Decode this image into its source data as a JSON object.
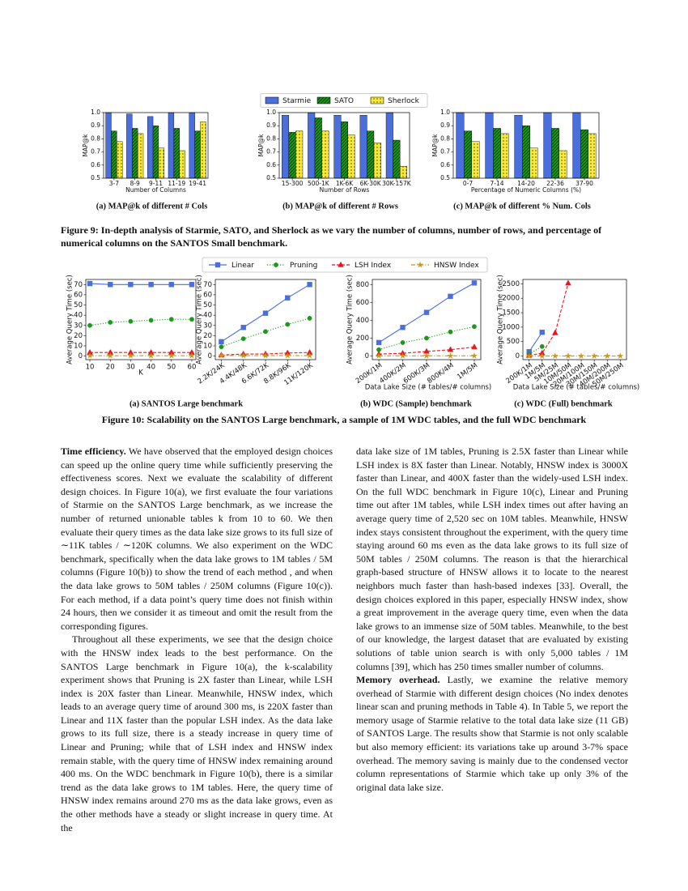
{
  "chart_data": [
    {
      "type": "bar",
      "caption": "Figure 9: In-depth analysis of Starmie, SATO, and Sherlock as we vary the number of columns, number of rows, and percentage of numerical columns on the SANTOS Small benchmark.",
      "legend": [
        {
          "name": "Starmie",
          "color": "#4a6fdc",
          "hatch": "none"
        },
        {
          "name": "SATO",
          "color": "#1f8f1f",
          "hatch": "diagonal"
        },
        {
          "name": "Sherlock",
          "color": "#f7e83a",
          "hatch": "dots"
        }
      ],
      "ylim": [
        0.5,
        1.0
      ],
      "yticks": [
        0.5,
        0.6,
        0.7,
        0.8,
        0.9,
        {
          "value": 1,
          "label": "1.0"
        }
      ],
      "panels": [
        {
          "ylabel": "MAP@k",
          "xlabel": "Number of Columns",
          "caption": "(a) MAP@k of different # Cols",
          "categories": [
            "3-7",
            "8-9",
            "9-11",
            "11-19",
            "19-41"
          ],
          "series": [
            {
              "values": [
                1.0,
                0.99,
                0.97,
                1.0,
                1.0
              ]
            },
            {
              "values": [
                0.86,
                0.88,
                0.9,
                0.88,
                0.86
              ]
            },
            {
              "values": [
                0.78,
                0.84,
                0.73,
                0.71,
                0.93
              ]
            }
          ]
        },
        {
          "ylabel": "MAP@k",
          "xlabel": "Number of Rows",
          "caption": "(b) MAP@k of different # Rows",
          "categories": [
            "15-300",
            "500-1K",
            "1K-6K",
            "6K-30K",
            "30K-157K"
          ],
          "series": [
            {
              "values": [
                0.98,
                1.0,
                0.98,
                0.98,
                1.0
              ]
            },
            {
              "values": [
                0.85,
                0.96,
                0.93,
                0.86,
                0.79
              ]
            },
            {
              "values": [
                0.86,
                0.86,
                0.83,
                0.77,
                0.59
              ]
            }
          ]
        },
        {
          "ylabel": "MAP@k",
          "xlabel": "Percentage of Numeric Columns (%)",
          "caption": "(c) MAP@k of different % Num. Cols",
          "categories": [
            "0-7",
            "7-14",
            "14-20",
            "22-36",
            "37-90"
          ],
          "series": [
            {
              "values": [
                1.0,
                1.0,
                0.98,
                1.0,
                1.0
              ]
            },
            {
              "values": [
                0.86,
                0.88,
                0.9,
                0.88,
                0.87
              ]
            },
            {
              "values": [
                0.78,
                0.84,
                0.73,
                0.71,
                0.84
              ]
            }
          ]
        }
      ]
    },
    {
      "type": "line",
      "caption": "Figure 10: Scalability on the SANTOS Large benchmark, a sample of 1M WDC tables, and the full WDC benchmark",
      "legend": [
        {
          "name": "Linear",
          "color": "#4a6fdc",
          "marker": "square",
          "dash": "solid"
        },
        {
          "name": "Pruning",
          "color": "#1a9a1a",
          "marker": "circle",
          "dash": "dotted"
        },
        {
          "name": "LSH Index",
          "color": "#e8141e",
          "marker": "triangle",
          "dash": "dashed"
        },
        {
          "name": "HNSW Index",
          "color": "#c8961e",
          "marker": "star",
          "dash": "dashdot"
        }
      ],
      "panels": [
        {
          "ylabel": "Average Query Time (sec)",
          "xlabel": "K",
          "caption": "(a) SANTOS Large benchmark",
          "x": [
            10,
            20,
            30,
            40,
            50,
            60
          ],
          "xlim": [
            8,
            62
          ],
          "xticks": [
            10,
            20,
            30,
            40,
            50,
            60
          ],
          "ylim": [
            -3.5,
            75
          ],
          "yticks": [
            0,
            10,
            20,
            30,
            40,
            50,
            60,
            70
          ],
          "series": [
            {
              "values": [
                71,
                70,
                70,
                70,
                70,
                70
              ]
            },
            {
              "values": [
                30,
                33,
                34,
                35,
                36,
                36
              ]
            },
            {
              "values": [
                3.5,
                3.5,
                3.5,
                3.5,
                3.5,
                3.5
              ]
            },
            {
              "values": [
                0.3,
                0.3,
                0.3,
                0.3,
                0.3,
                0.3
              ]
            }
          ]
        },
        {
          "ylabel": "Average Query Time (sec)",
          "categories": [
            "2.2K/24K",
            "4.4K/48K",
            "6.6K/72K",
            "8.8K/96K",
            "11K/120K"
          ],
          "ylim": [
            -3.5,
            75
          ],
          "yticks": [
            0,
            10,
            20,
            30,
            40,
            50,
            60,
            70
          ],
          "series": [
            {
              "values": [
                14,
                28,
                42,
                57,
                70
              ]
            },
            {
              "values": [
                9,
                17,
                24,
                31,
                37
              ]
            },
            {
              "values": [
                1,
                2,
                2,
                3,
                3.5
              ]
            },
            {
              "values": [
                0.4,
                0.4,
                0.4,
                0.4,
                0.4
              ]
            }
          ]
        },
        {
          "ylabel": "Average Query Time (sec)",
          "xlabel": "Data Lake Size (# tables/# columns)",
          "caption": "(b) WDC (Sample) benchmark",
          "categories": [
            "200K/1M",
            "400K/2M",
            "600K/3M",
            "800K/4M",
            "1M/5M"
          ],
          "ylim": [
            -42,
            860
          ],
          "yticks": [
            0,
            200,
            400,
            600,
            800
          ],
          "series": [
            {
              "values": [
                150,
                320,
                490,
                670,
                820
              ]
            },
            {
              "values": [
                70,
                150,
                200,
                270,
                330
              ]
            },
            {
              "values": [
                20,
                30,
                50,
                70,
                100
              ]
            },
            {
              "values": [
                0.27,
                0.27,
                0.27,
                0.27,
                0.27
              ]
            }
          ]
        },
        {
          "ylabel": "Average Query Time (sec)",
          "xlabel": "Data Lake Size (# tables/# columns)",
          "caption": "(c) WDC (Full) benchmark",
          "categories": [
            "200K/1M",
            "1M/5M",
            "5M/25M",
            "10M/50M",
            "20M/100M",
            "30M/150M",
            "40M/200M",
            "50M/250M"
          ],
          "ylim": [
            -125,
            2650
          ],
          "yticks": [
            0,
            500,
            1000,
            1500,
            2000,
            2500
          ],
          "series": [
            {
              "values": [
                150,
                820,
                null,
                null,
                null,
                null,
                null,
                null
              ]
            },
            {
              "values": [
                70,
                330,
                null,
                null,
                null,
                null,
                null,
                null
              ]
            },
            {
              "values": [
                20,
                100,
                800,
                2520,
                null,
                null,
                null,
                null
              ]
            },
            {
              "values": [
                0.06,
                0.06,
                0.06,
                0.06,
                0.06,
                0.06,
                0.06,
                0.06
              ]
            }
          ]
        }
      ]
    }
  ],
  "body": {
    "left": [
      {
        "heading": "Time efficiency.",
        "text": "We have observed that the employed design choices can speed up the online query time while sufficiently preserving the effectiveness scores. Next we evaluate the scalability of different design choices. In Figure 10(a), we first evaluate the four variations of Starmie on the SANTOS Large benchmark, as we increase the number of returned unionable tables k from 10 to 60. We then evaluate their query times as the data lake size grows to its full size of ∼11K tables / ∼120K columns. We also experiment on the WDC benchmark, specifically when the data lake grows to 1M tables / 5M columns (Figure 10(b)) to show the trend of each method , and when the data lake grows to 50M tables / 250M columns (Figure 10(c)). For each method, if a data point’s query time does not finish within 24 hours, then we consider it as timeout and omit the result from the corresponding figures."
      },
      {
        "text": "Throughout all these experiments, we see that the design choice with the HNSW index leads to the best performance. On the SANTOS Large benchmark in Figure 10(a), the k-scalability experiment shows that Pruning is 2X faster than Linear, while LSH index is 20X faster than Linear. Meanwhile, HNSW index, which leads to an average query time of around 300 ms, is 220X faster than Linear and 11X faster than the popular LSH index. As the data lake grows to its full size, there is a steady increase in query time of Linear and Pruning; while that of LSH index and HNSW index remain stable, with the query time of HNSW index remaining around 400 ms. On the WDC benchmark in Figure 10(b), there is a similar trend as the data lake grows to 1M tables. Here, the query time of HNSW index remains around 270 ms as the data lake grows, even as the other methods have a steady or slight increase in query time. At the"
      }
    ],
    "right": [
      {
        "text": "data lake size of 1M tables, Pruning is 2.5X faster than Linear while LSH index is 8X faster than Linear. Notably, HNSW index is 3000X faster than Linear, and 400X faster than the widely-used LSH index. On the full WDC benchmark in Figure 10(c), Linear and Pruning time out after 1M tables, while LSH index times out after having an average query time of 2,520 sec on 10M tables. Meanwhile, HNSW index stays consistent throughout the experiment, with the query time staying around 60 ms even as the data lake grows to its full size of 50M tables / 250M columns. The reason is that the hierarchical graph-based structure of HNSW allows it to locate to the nearest neighbors much faster than hash-based indexes [33]. Overall, the design choices explored in this paper, especially HNSW index, show a great improvement in the average query time, even when the data lake grows to an immense size of 50M tables. Meanwhile, to the best of our knowledge, the largest dataset that are evaluated by existing solutions of table union search is with only 5,000 tables / 1M columns [39], which has 250 times smaller number of columns."
      },
      {
        "heading": "Memory overhead.",
        "text": "Lastly, we examine the relative memory overhead of Starmie with different design choices (No index denotes linear scan and pruning methods in Table 4). In Table 5, we report the memory usage of Starmie relative to the total data lake size (11 GB) of SANTOS Large. The results show that Starmie is not only scalable but also memory efficient: its variations take up around 3-7% space overhead. The memory saving is mainly due to the condensed vector column representations of Starmie which take up only 3% of the original data lake size."
      }
    ]
  }
}
